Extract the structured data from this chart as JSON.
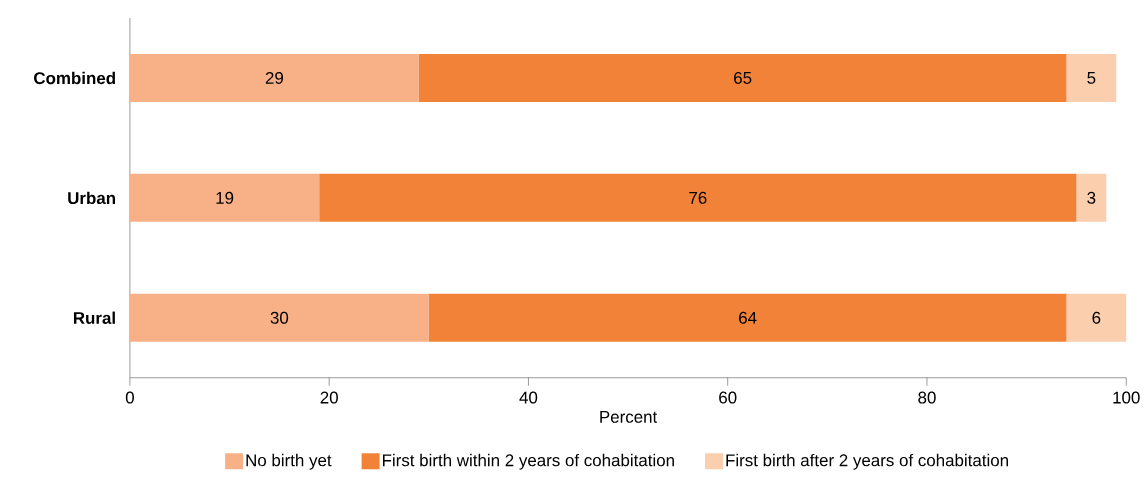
{
  "chart_data": {
    "type": "bar",
    "orientation": "horizontal",
    "stacked": true,
    "xlabel": "Percent",
    "categories": [
      "Combined",
      "Urban",
      "Rural"
    ],
    "series": [
      {
        "name": "No birth yet",
        "color": "#f8b186",
        "values": [
          29,
          19,
          30
        ]
      },
      {
        "name": "First birth within 2 years of cohabitation",
        "color": "#f28238",
        "values": [
          65,
          76,
          64
        ]
      },
      {
        "name": "First birth after 2 years of cohabitation",
        "color": "#fbcfae",
        "values": [
          5,
          3,
          6
        ]
      }
    ],
    "xlim": [
      0,
      100
    ],
    "xticks": [
      0,
      20,
      40,
      60,
      80,
      100
    ],
    "data_labels": true,
    "legend": "bottom",
    "grid": false
  }
}
